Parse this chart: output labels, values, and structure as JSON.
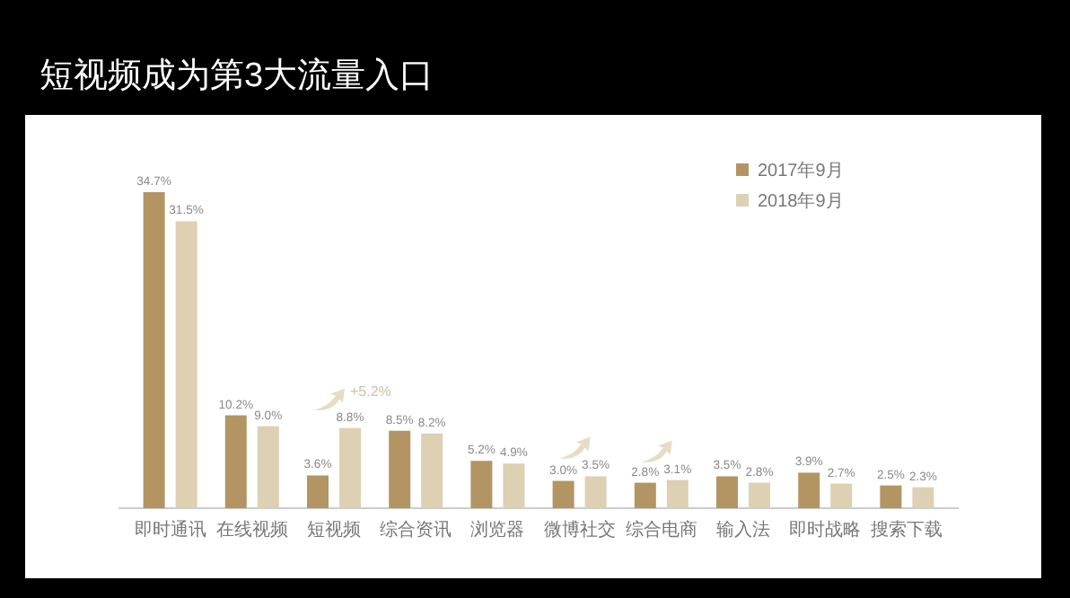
{
  "chart_data": {
    "type": "bar",
    "title": "短视频成为第3大流量入口",
    "categories": [
      "即时通讯",
      "在线视频",
      "短视频",
      "综合资讯",
      "浏览器",
      "微博社交",
      "综合电商",
      "输入法",
      "即时战略",
      "搜索下载"
    ],
    "series": [
      {
        "name": "2017年9月",
        "color": "#b39563",
        "values": [
          34.7,
          10.2,
          3.6,
          8.5,
          5.2,
          3.0,
          2.8,
          3.5,
          3.9,
          2.5
        ],
        "value_labels": [
          "34.7%",
          "10.2%",
          "3.6%",
          "8.5%",
          "5.2%",
          "3.0%",
          "2.8%",
          "3.5%",
          "3.9%",
          "2.5%"
        ]
      },
      {
        "name": "2018年9月",
        "color": "#ddd0b3",
        "values": [
          31.5,
          9.0,
          8.8,
          8.2,
          4.9,
          3.5,
          3.1,
          2.8,
          2.7,
          2.3
        ],
        "value_labels": [
          "31.5%",
          "9.0%",
          "8.8%",
          "8.2%",
          "4.9%",
          "3.5%",
          "3.1%",
          "2.8%",
          "2.7%",
          "2.3%"
        ]
      }
    ],
    "annotations": [
      "+5.2%"
    ],
    "legend": "top right"
  }
}
